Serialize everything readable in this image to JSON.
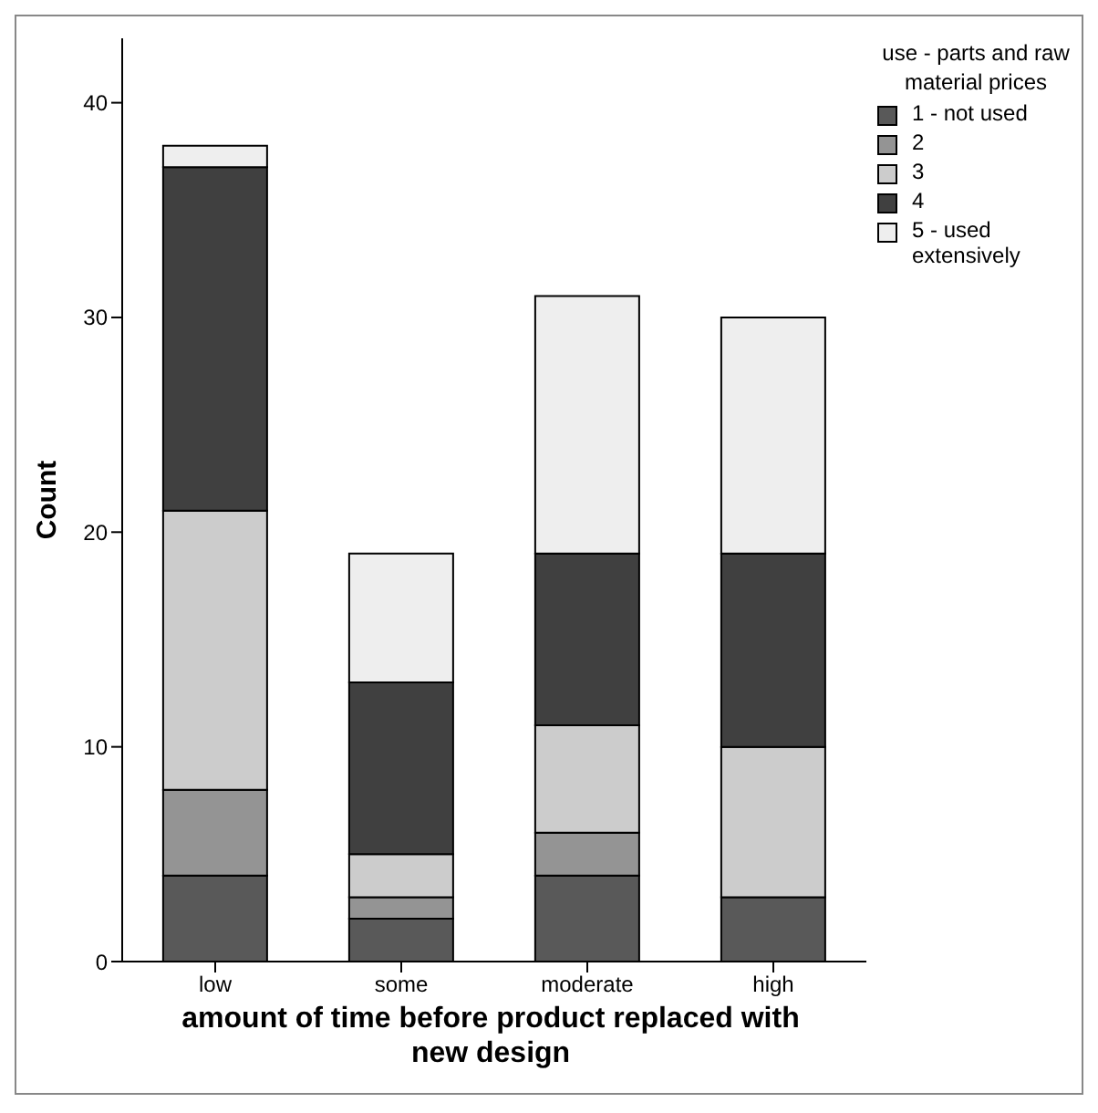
{
  "chart_data": {
    "type": "bar",
    "stacked": true,
    "xlabel": "amount of time before product replaced with new design",
    "ylabel": "Count",
    "legend_title": "use - parts and raw material prices",
    "legend": "top right",
    "grid": false,
    "categories": [
      "low",
      "some",
      "moderate",
      "high"
    ],
    "series": [
      {
        "name": "1 - not used",
        "color": "#595959",
        "values": [
          4,
          2,
          4,
          3
        ]
      },
      {
        "name": "2",
        "color": "#949494",
        "values": [
          4,
          1,
          2,
          0
        ]
      },
      {
        "name": "3",
        "color": "#cccccc",
        "values": [
          13,
          2,
          5,
          7
        ]
      },
      {
        "name": "4",
        "color": "#404040",
        "values": [
          16,
          8,
          8,
          9
        ]
      },
      {
        "name": "5 - used extensively",
        "color": "#eeeeee",
        "values": [
          1,
          6,
          12,
          11
        ]
      }
    ],
    "ylim": [
      0,
      43
    ],
    "yticks": [
      0,
      10,
      20,
      30,
      40
    ]
  }
}
